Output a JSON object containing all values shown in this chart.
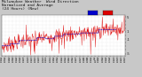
{
  "title_line1": "Milwaukee Weather  Wind Direction",
  "title_line2": "Normalized and Average",
  "title_line3": "(24 Hours) (New)",
  "bg_color": "#c8c8c8",
  "plot_bg_color": "#ffffff",
  "red_color": "#dd0000",
  "blue_color": "#0000cc",
  "ylim": [
    -5.5,
    5.5
  ],
  "yticks": [
    5,
    4,
    3,
    2,
    1,
    0,
    -1,
    -2,
    -3,
    -4,
    -5
  ],
  "ytick_labels": [
    "5",
    "",
    "",
    "",
    "1",
    "",
    "-1",
    "",
    "",
    "",
    "-5"
  ],
  "title_fontsize": 3.2,
  "tick_fontsize": 2.8,
  "n_points": 350,
  "avg_step": 25
}
